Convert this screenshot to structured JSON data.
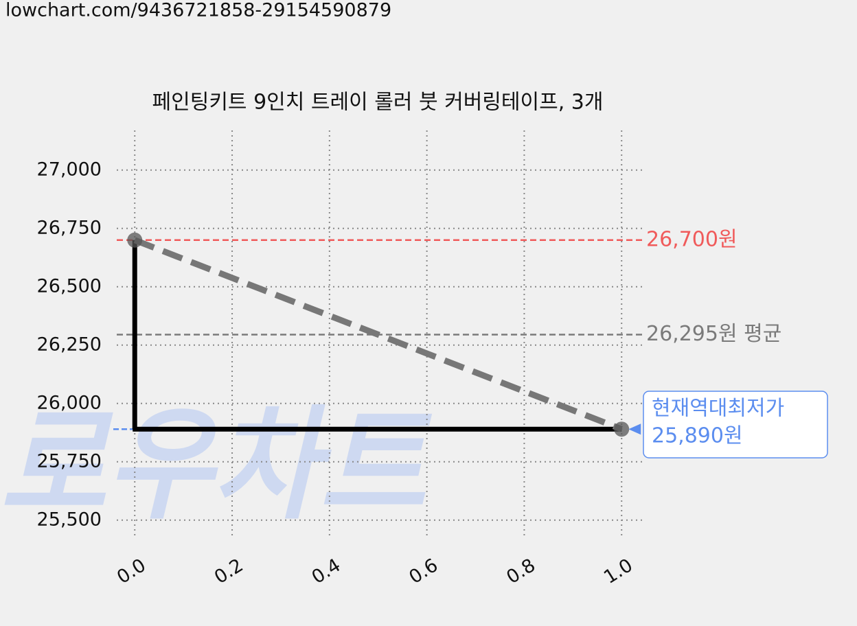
{
  "url": "lowchart.com/9436721858-29154590879",
  "chart_data": {
    "type": "line",
    "title": "페인팅키트 9인치 트레이 롤러 붓 커버링테이프, 3개",
    "watermark": "로우차트",
    "x": [
      0,
      1
    ],
    "values": [
      26700,
      25890
    ],
    "color": "#777777",
    "step_color": "#000000",
    "marker_color": "#555555",
    "xlim": [
      -0.037,
      1.042
    ],
    "ylim": [
      25420,
      27170
    ],
    "xticks": [
      {
        "value": 0,
        "label": "0.0"
      },
      0.2,
      0.4,
      0.6,
      0.8,
      {
        "value": 1,
        "label": "1.0"
      }
    ],
    "yticks": [
      {
        "value": 25500,
        "label": "25,500"
      },
      {
        "value": 25750,
        "label": "25,750"
      },
      {
        "value": 26000,
        "label": "26,000"
      },
      {
        "value": 26250,
        "label": "26,250"
      },
      {
        "value": 26500,
        "label": "26,500"
      },
      {
        "value": 26750,
        "label": "26,750"
      },
      {
        "value": 27000,
        "label": "27,000"
      }
    ],
    "grid": true,
    "reference_lines": [
      {
        "value": 26700,
        "label": "26,700원",
        "color": "#f05a5a"
      },
      {
        "value": 26295,
        "label": "26,295원 평균",
        "color": "#7a7a7a"
      }
    ],
    "min_annotation": {
      "value": 25890,
      "lines": [
        "현재역대최저가",
        "25,890원"
      ],
      "color": "#5b8def"
    }
  }
}
